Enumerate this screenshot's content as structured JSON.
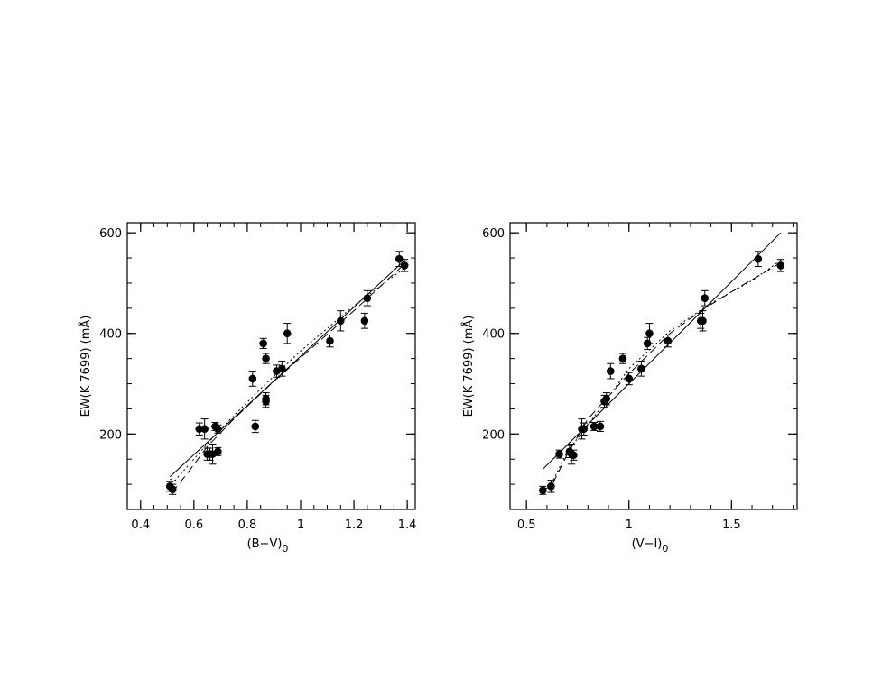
{
  "chart_data": [
    {
      "type": "scatter",
      "title": "",
      "xlabel": "(B−V)",
      "xlabel_subscript": "0",
      "ylabel": "EW(K 7699) (mÅ)",
      "xlim": [
        0.35,
        1.43
      ],
      "ylim": [
        50,
        620
      ],
      "xticks": [
        0.4,
        0.6,
        0.8,
        1,
        1.2,
        1.4
      ],
      "xtick_labels": [
        "0.4",
        "0.6",
        "0.8",
        "1",
        "1.2",
        "1.4"
      ],
      "yticks": [
        200,
        400,
        600
      ],
      "ytick_labels": [
        "200",
        "400",
        "600"
      ],
      "grid": false,
      "legend": "none",
      "points": [
        {
          "x": 0.51,
          "y": 96,
          "err": 10
        },
        {
          "x": 0.52,
          "y": 90,
          "err": 10
        },
        {
          "x": 0.62,
          "y": 210,
          "err": 12
        },
        {
          "x": 0.64,
          "y": 210,
          "err": 20
        },
        {
          "x": 0.65,
          "y": 160,
          "err": 12
        },
        {
          "x": 0.66,
          "y": 160,
          "err": 12
        },
        {
          "x": 0.67,
          "y": 160,
          "err": 20
        },
        {
          "x": 0.68,
          "y": 215,
          "err": 8
        },
        {
          "x": 0.69,
          "y": 165,
          "err": 8
        },
        {
          "x": 0.69,
          "y": 210,
          "err": 8
        },
        {
          "x": 0.82,
          "y": 310,
          "err": 15
        },
        {
          "x": 0.83,
          "y": 215,
          "err": 12
        },
        {
          "x": 0.86,
          "y": 380,
          "err": 10
        },
        {
          "x": 0.87,
          "y": 350,
          "err": 10
        },
        {
          "x": 0.87,
          "y": 265,
          "err": 12
        },
        {
          "x": 0.87,
          "y": 270,
          "err": 12
        },
        {
          "x": 0.91,
          "y": 325,
          "err": 12
        },
        {
          "x": 0.93,
          "y": 330,
          "err": 15
        },
        {
          "x": 0.95,
          "y": 400,
          "err": 20
        },
        {
          "x": 1.11,
          "y": 385,
          "err": 12
        },
        {
          "x": 1.15,
          "y": 425,
          "err": 20
        },
        {
          "x": 1.24,
          "y": 425,
          "err": 15
        },
        {
          "x": 1.25,
          "y": 470,
          "err": 15
        },
        {
          "x": 1.37,
          "y": 548,
          "err": 15
        },
        {
          "x": 1.39,
          "y": 535,
          "err": 12
        }
      ],
      "series": [
        {
          "style": "solid",
          "x": [
            0.51,
            1.39
          ],
          "y": [
            115,
            545
          ]
        },
        {
          "style": "dashed",
          "x": [
            0.51,
            0.53,
            0.58,
            0.65,
            0.75,
            0.9,
            1.05,
            1.2,
            1.39
          ],
          "y": [
            90,
            92,
            125,
            175,
            230,
            305,
            375,
            445,
            538
          ]
        },
        {
          "style": "dotted",
          "x": [
            0.51,
            0.53,
            0.6,
            0.7,
            0.85,
            1.0,
            1.2,
            1.39
          ],
          "y": [
            110,
            108,
            150,
            210,
            290,
            365,
            455,
            530
          ]
        }
      ]
    },
    {
      "type": "scatter",
      "title": "",
      "xlabel": "(V−I)",
      "xlabel_subscript": "0",
      "ylabel": "EW(K 7699) (mÅ)",
      "xlim": [
        0.42,
        1.82
      ],
      "ylim": [
        50,
        620
      ],
      "xticks": [
        0.5,
        1,
        1.5
      ],
      "xtick_labels": [
        "0.5",
        "1",
        "1.5"
      ],
      "yticks": [
        200,
        400,
        600
      ],
      "ytick_labels": [
        "200",
        "400",
        "600"
      ],
      "grid": false,
      "legend": "none",
      "points": [
        {
          "x": 0.58,
          "y": 88,
          "err": 8
        },
        {
          "x": 0.62,
          "y": 96,
          "err": 12
        },
        {
          "x": 0.66,
          "y": 160,
          "err": 8
        },
        {
          "x": 0.71,
          "y": 165,
          "err": 12
        },
        {
          "x": 0.72,
          "y": 160,
          "err": 20
        },
        {
          "x": 0.73,
          "y": 158,
          "err": 10
        },
        {
          "x": 0.77,
          "y": 210,
          "err": 20
        },
        {
          "x": 0.78,
          "y": 210,
          "err": 12
        },
        {
          "x": 0.83,
          "y": 215,
          "err": 8
        },
        {
          "x": 0.86,
          "y": 215,
          "err": 10
        },
        {
          "x": 0.88,
          "y": 265,
          "err": 12
        },
        {
          "x": 0.89,
          "y": 270,
          "err": 12
        },
        {
          "x": 0.91,
          "y": 325,
          "err": 15
        },
        {
          "x": 0.97,
          "y": 350,
          "err": 10
        },
        {
          "x": 1.0,
          "y": 310,
          "err": 12
        },
        {
          "x": 1.06,
          "y": 330,
          "err": 15
        },
        {
          "x": 1.09,
          "y": 380,
          "err": 12
        },
        {
          "x": 1.1,
          "y": 400,
          "err": 20
        },
        {
          "x": 1.19,
          "y": 385,
          "err": 12
        },
        {
          "x": 1.35,
          "y": 425,
          "err": 15
        },
        {
          "x": 1.36,
          "y": 425,
          "err": 20
        },
        {
          "x": 1.37,
          "y": 470,
          "err": 15
        },
        {
          "x": 1.63,
          "y": 548,
          "err": 15
        },
        {
          "x": 1.74,
          "y": 535,
          "err": 12
        }
      ],
      "series": [
        {
          "style": "solid",
          "x": [
            0.58,
            1.74
          ],
          "y": [
            130,
            600
          ]
        },
        {
          "style": "dashed",
          "x": [
            0.58,
            0.62,
            0.7,
            0.8,
            1.0,
            1.2,
            1.37,
            1.55,
            1.74
          ],
          "y": [
            90,
            95,
            160,
            230,
            320,
            400,
            450,
            495,
            540
          ]
        },
        {
          "style": "dotted",
          "x": [
            0.58,
            0.62,
            0.7,
            0.85,
            1.0,
            1.2,
            1.4,
            1.6,
            1.74
          ],
          "y": [
            95,
            100,
            165,
            245,
            330,
            405,
            460,
            505,
            545
          ]
        }
      ]
    }
  ]
}
